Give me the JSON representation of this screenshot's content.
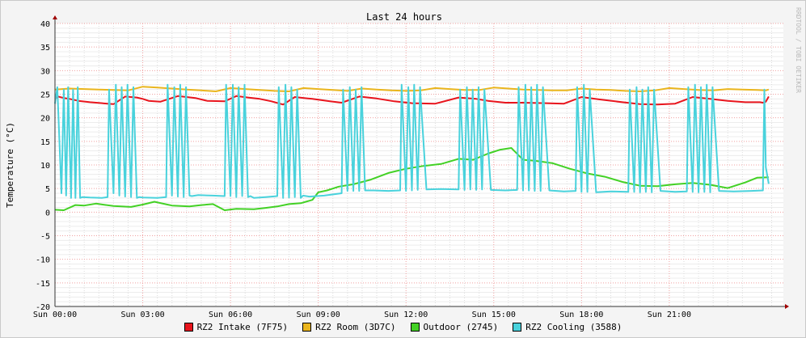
{
  "chart_data": {
    "type": "line",
    "title": "Last 24 hours",
    "ylabel": "Temperature (°C)",
    "watermark": "RRDTOOL / TOBI OETIKER",
    "ylim": [
      -20,
      40
    ],
    "yticks": [
      -20,
      -15,
      -10,
      -5,
      0,
      5,
      10,
      15,
      20,
      25,
      30,
      35,
      40
    ],
    "xlim": [
      0,
      24.9
    ],
    "xticks": [
      {
        "value": 0,
        "label": "Sun 00:00"
      },
      {
        "value": 3,
        "label": "Sun 03:00"
      },
      {
        "value": 6,
        "label": "Sun 06:00"
      },
      {
        "value": 9,
        "label": "Sun 09:00"
      },
      {
        "value": 12,
        "label": "Sun 12:00"
      },
      {
        "value": 15,
        "label": "Sun 15:00"
      },
      {
        "value": 18,
        "label": "Sun 18:00"
      },
      {
        "value": 21,
        "label": "Sun 21:00"
      }
    ],
    "grid": true,
    "legend_position": "bottom",
    "series": [
      {
        "name": "RZ2 Intake (7F75)",
        "color": "#e8141c",
        "x": [
          0,
          0.1,
          0.3,
          0.5,
          0.8,
          1.2,
          1.8,
          2.0,
          2.4,
          2.8,
          3.0,
          3.2,
          3.6,
          4.2,
          4.8,
          5.2,
          5.8,
          6.2,
          6.6,
          7.0,
          7.4,
          7.8,
          8.2,
          8.8,
          9.4,
          9.8,
          10.4,
          11.0,
          11.6,
          12.2,
          13.0,
          13.8,
          14.4,
          14.8,
          15.4,
          16.0,
          16.8,
          17.4,
          18.0,
          18.6,
          19.4,
          20.0,
          20.6,
          21.2,
          21.8,
          22.4,
          23.0,
          23.6,
          24.1,
          24.2,
          24.3,
          24.4
        ],
        "y": [
          24,
          24.5,
          24.2,
          24.0,
          23.6,
          23.3,
          23.0,
          22.9,
          24.5,
          24.3,
          24.0,
          23.6,
          23.4,
          24.6,
          24.2,
          23.6,
          23.5,
          24.6,
          24.3,
          24.0,
          23.5,
          22.8,
          24.4,
          24.0,
          23.5,
          23.2,
          24.5,
          24.1,
          23.5,
          23.1,
          23.0,
          24.3,
          24.0,
          23.6,
          23.2,
          23.2,
          23.1,
          23.0,
          24.4,
          23.9,
          23.3,
          22.9,
          22.8,
          23.0,
          24.4,
          24.0,
          23.6,
          23.3,
          23.3,
          23.2,
          23.4,
          24.5
        ]
      },
      {
        "name": "RZ2 Room (3D7C)",
        "color": "#eab51d",
        "x": [
          0,
          0.5,
          1.0,
          1.5,
          2.0,
          2.5,
          3.0,
          3.5,
          4.0,
          4.5,
          5.0,
          5.5,
          6.0,
          6.5,
          7.0,
          7.5,
          8.0,
          8.5,
          9.0,
          9.5,
          10.0,
          10.5,
          11.0,
          11.5,
          12.0,
          12.5,
          13.0,
          13.5,
          14.0,
          14.5,
          15.0,
          15.5,
          16.0,
          16.5,
          17.0,
          17.5,
          18.0,
          18.5,
          19.0,
          19.5,
          20.0,
          20.5,
          21.0,
          21.5,
          22.0,
          22.5,
          23.0,
          23.5,
          24.0,
          24.3,
          24.4
        ],
        "y": [
          26.0,
          26.2,
          26.1,
          26.0,
          25.9,
          25.8,
          26.6,
          26.4,
          26.2,
          26.0,
          25.8,
          25.6,
          26.3,
          26.1,
          25.9,
          25.7,
          25.6,
          26.3,
          26.1,
          25.9,
          25.7,
          26.2,
          26.0,
          25.8,
          25.7,
          25.8,
          26.3,
          26.1,
          25.9,
          25.9,
          26.4,
          26.2,
          26.0,
          25.9,
          25.8,
          25.8,
          26.2,
          26.0,
          25.9,
          25.7,
          25.6,
          25.8,
          26.3,
          26.1,
          25.9,
          25.8,
          26.1,
          26.0,
          25.9,
          25.8,
          26.0
        ]
      },
      {
        "name": "Outdoor (2745)",
        "color": "#43d125",
        "x": [
          0,
          0.3,
          0.7,
          1.0,
          1.4,
          2.0,
          2.6,
          3.0,
          3.4,
          4.0,
          4.6,
          5.0,
          5.4,
          5.8,
          6.2,
          6.8,
          7.2,
          7.6,
          8.0,
          8.4,
          8.8,
          9.0,
          9.3,
          9.7,
          10.2,
          10.8,
          11.4,
          12.0,
          12.6,
          13.2,
          13.8,
          14.3,
          14.8,
          15.2,
          15.6,
          16.0,
          16.4,
          17.0,
          17.6,
          18.2,
          18.8,
          19.4,
          20.0,
          20.6,
          21.2,
          21.8,
          22.4,
          23.0,
          23.6,
          24.0,
          24.4
        ],
        "y": [
          0.5,
          0.4,
          1.5,
          1.4,
          1.8,
          1.3,
          1.1,
          1.6,
          2.2,
          1.4,
          1.2,
          1.5,
          1.7,
          0.4,
          0.7,
          0.6,
          0.9,
          1.2,
          1.7,
          1.9,
          2.6,
          4.2,
          4.6,
          5.4,
          5.9,
          6.9,
          8.3,
          9.2,
          9.8,
          10.2,
          11.3,
          11.1,
          12.4,
          13.2,
          13.6,
          11.1,
          10.9,
          10.4,
          9.2,
          8.2,
          7.5,
          6.4,
          5.6,
          5.5,
          5.9,
          6.2,
          5.8,
          5.1,
          6.3,
          7.3,
          7.4
        ]
      },
      {
        "name": "RZ2 Cooling (3588)",
        "color": "#49d2dc",
        "x": [
          0.0,
          0.08,
          0.22,
          0.3,
          0.38,
          0.45,
          0.55,
          0.62,
          0.7,
          0.78,
          0.86,
          0.94,
          1.2,
          1.6,
          1.8,
          1.85,
          2.0,
          2.08,
          2.2,
          2.28,
          2.4,
          2.48,
          2.6,
          2.68,
          2.8,
          2.88,
          3.0,
          3.5,
          3.8,
          3.85,
          4.0,
          4.08,
          4.2,
          4.28,
          4.4,
          4.48,
          4.6,
          4.68,
          4.9,
          5.4,
          5.8,
          5.85,
          6.0,
          6.08,
          6.2,
          6.28,
          6.4,
          6.48,
          6.6,
          6.68,
          6.8,
          7.2,
          7.6,
          7.65,
          7.8,
          7.88,
          8.0,
          8.08,
          8.2,
          8.28,
          8.4,
          8.48,
          8.7,
          9.2,
          9.8,
          9.85,
          10.0,
          10.08,
          10.2,
          10.28,
          10.4,
          10.48,
          10.6,
          10.9,
          11.4,
          11.8,
          11.85,
          12.0,
          12.08,
          12.2,
          12.28,
          12.4,
          12.48,
          12.7,
          13.2,
          13.8,
          13.85,
          14.0,
          14.08,
          14.2,
          14.28,
          14.4,
          14.48,
          14.6,
          14.68,
          14.9,
          15.4,
          15.8,
          15.85,
          16.0,
          16.08,
          16.2,
          16.28,
          16.4,
          16.48,
          16.6,
          16.68,
          16.9,
          17.4,
          17.8,
          17.85,
          18.0,
          18.08,
          18.2,
          18.28,
          18.5,
          19.0,
          19.6,
          19.65,
          19.8,
          19.88,
          20.0,
          20.08,
          20.2,
          20.28,
          20.4,
          20.48,
          20.7,
          21.2,
          21.6,
          21.65,
          21.8,
          21.88,
          22.0,
          22.08,
          22.2,
          22.28,
          22.4,
          22.48,
          22.7,
          23.2,
          23.8,
          24.2,
          24.25,
          24.3,
          24.4
        ],
        "y": [
          23,
          26.5,
          4,
          26,
          3.5,
          26.5,
          3,
          26,
          3,
          26.5,
          3,
          3.2,
          3.1,
          3.0,
          3.2,
          26,
          4,
          27,
          3.5,
          26.5,
          3.3,
          27,
          3.2,
          26.5,
          3.0,
          3.2,
          3.1,
          3.0,
          3.2,
          27,
          3.5,
          26.5,
          3.3,
          27,
          3.2,
          26.5,
          3.5,
          3.4,
          3.6,
          3.5,
          3.4,
          27,
          3.4,
          27,
          3.2,
          26.5,
          3.4,
          27,
          3.2,
          3.4,
          3.0,
          3.2,
          3.4,
          26.5,
          3.0,
          27,
          3.1,
          26.5,
          3.2,
          26,
          3.0,
          3.5,
          3.3,
          3.5,
          4.0,
          26,
          4.5,
          26.5,
          4.5,
          26,
          4.5,
          26.5,
          4.6,
          4.6,
          4.5,
          4.6,
          27,
          4.5,
          26.5,
          4.6,
          27,
          4.7,
          26.5,
          4.8,
          4.9,
          4.8,
          26,
          4.7,
          26.5,
          4.8,
          26,
          4.7,
          26.5,
          4.8,
          26,
          4.7,
          4.6,
          4.7,
          26.5,
          4.6,
          27,
          4.6,
          26.5,
          4.5,
          27,
          4.5,
          26.5,
          4.6,
          4.4,
          4.5,
          26.5,
          4.3,
          27,
          4.3,
          26,
          4.2,
          4.4,
          4.3,
          26,
          4.3,
          26.5,
          4.2,
          26,
          4.3,
          26.5,
          4.2,
          26,
          4.5,
          4.3,
          4.4,
          26.5,
          4.3,
          27,
          4.2,
          26.5,
          4.3,
          27,
          4.2,
          26.5,
          4.5,
          4.4,
          4.5,
          4.6,
          26,
          9.5,
          6
        ]
      }
    ]
  }
}
